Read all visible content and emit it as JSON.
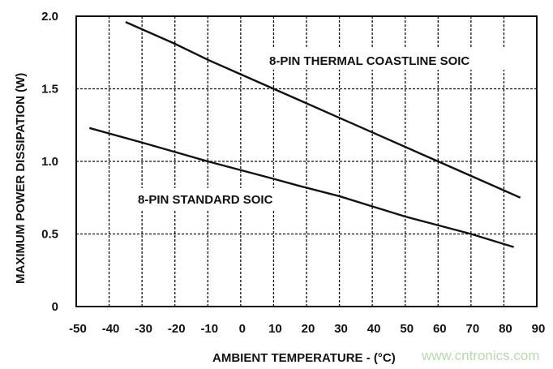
{
  "chart_data": {
    "type": "line",
    "title": "",
    "xlabel": "AMBIENT TEMPERATURE - (°C)",
    "ylabel": "MAXIMUM POWER DISSIPATION (W)",
    "xlim": [
      -50,
      90
    ],
    "ylim": [
      0,
      2.0
    ],
    "xticks": [
      "-50",
      "-40",
      "-30",
      "-20",
      "-10",
      "0",
      "10",
      "20",
      "30",
      "40",
      "50",
      "60",
      "70",
      "80",
      "90"
    ],
    "yticks": [
      "0",
      "0.5",
      "1.0",
      "1.5",
      "2.0"
    ],
    "grid": "dashed",
    "series": [
      {
        "name": "8-PIN THERMAL COASTLINE SOIC",
        "color": "#111111",
        "x": [
          -35,
          -20,
          -10,
          0,
          10,
          20,
          30,
          40,
          50,
          60,
          70,
          85
        ],
        "y": [
          1.96,
          1.81,
          1.7,
          1.6,
          1.5,
          1.4,
          1.3,
          1.2,
          1.1,
          1.0,
          0.9,
          0.75
        ]
      },
      {
        "name": "8-PIN STANDARD SOIC",
        "color": "#111111",
        "x": [
          -46,
          -30,
          -10,
          0,
          10,
          18,
          30,
          40,
          50,
          60,
          70,
          83
        ],
        "y": [
          1.23,
          1.13,
          1.0,
          0.94,
          0.88,
          0.83,
          0.76,
          0.69,
          0.62,
          0.56,
          0.5,
          0.41
        ]
      }
    ]
  },
  "watermark": "www.cntronics.com"
}
